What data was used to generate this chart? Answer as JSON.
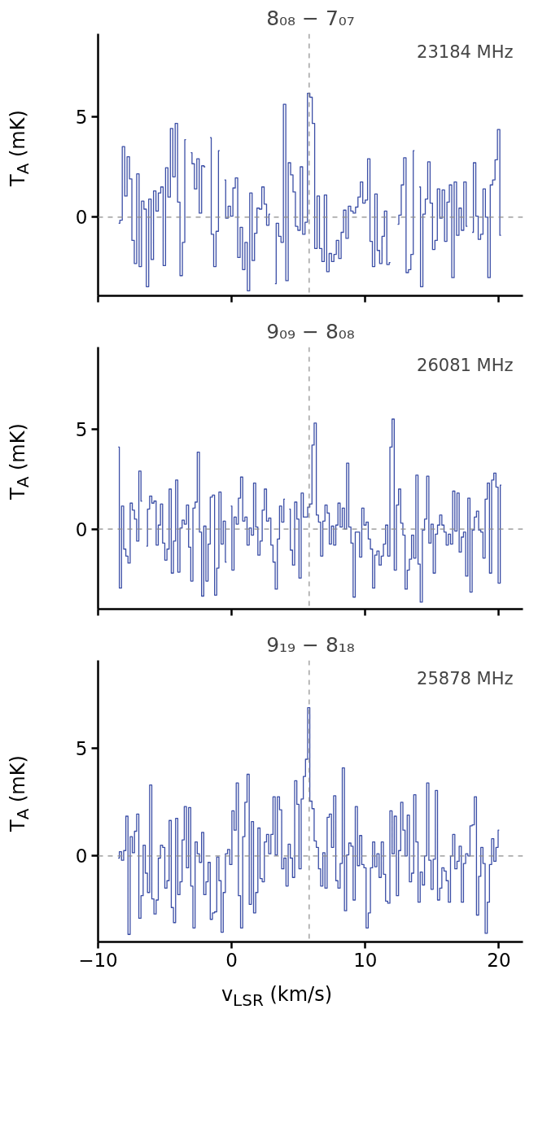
{
  "chart_data": [
    {
      "type": "step",
      "title": "8₀₈ − 7₀₇",
      "ylabel": "T$_{A}$ (mK)",
      "annotations": [
        "23184 MHz"
      ],
      "xlim": [
        -10,
        21.8
      ],
      "xticks": [
        {
          "value": -10,
          "label": null
        },
        {
          "value": 0,
          "label": null
        },
        {
          "value": 10,
          "label": null
        },
        {
          "value": 20,
          "label": null
        }
      ],
      "ylim": [
        -3.9,
        9.1
      ],
      "yticks": [
        0,
        5
      ],
      "tick_labels": "y",
      "grid": false,
      "x": [
        -8.46,
        -8.28,
        -8.1,
        -7.92,
        -7.74,
        -7.56,
        -7.38,
        -7.2,
        -7.02,
        -6.84,
        -6.66,
        -6.48,
        -6.3,
        -6.12,
        -5.94,
        -5.76,
        -5.58,
        -5.4,
        -5.22,
        -5.04,
        -4.86,
        -4.68,
        -4.5,
        -4.32,
        -4.14,
        -3.96,
        -3.78,
        -3.6,
        -3.42,
        -3.24,
        -3.06,
        -2.88,
        -2.7,
        -2.52,
        -2.34,
        -2.16,
        -1.98,
        -1.8,
        -1.62,
        -1.44,
        -1.26,
        -1.08,
        -0.9,
        -0.72,
        -0.54,
        -0.36,
        -0.18,
        0.0,
        0.18,
        0.36,
        0.54,
        0.72,
        0.9,
        1.08,
        1.26,
        1.44,
        1.62,
        1.8,
        1.98,
        2.16,
        2.34,
        2.52,
        2.7,
        2.88,
        3.06,
        3.24,
        3.42,
        3.6,
        3.78,
        3.96,
        4.14,
        4.32,
        4.5,
        4.68,
        4.86,
        5.04,
        5.22,
        5.4,
        5.58,
        5.76,
        5.94,
        6.12,
        6.3,
        6.48,
        6.66,
        6.84,
        7.02,
        7.2,
        7.38,
        7.56,
        7.74,
        7.92,
        8.1,
        8.28,
        8.46,
        8.64,
        8.82,
        9.0,
        9.18,
        9.36,
        9.54,
        9.72,
        9.9,
        10.08,
        10.26,
        10.44,
        10.62,
        10.8,
        10.98,
        11.16,
        11.34,
        11.52,
        11.7,
        11.88,
        12.06,
        12.24,
        12.42,
        12.6,
        12.78,
        12.96,
        13.14,
        13.32,
        13.5,
        13.68,
        13.86,
        14.04,
        14.22,
        14.4,
        14.58,
        14.76,
        14.94,
        15.12,
        15.3,
        15.48,
        15.66,
        15.84,
        16.02,
        16.2,
        16.38,
        16.56,
        16.74,
        16.92,
        17.1,
        17.28,
        17.46,
        17.64,
        17.82,
        18.0,
        18.18,
        18.36,
        18.54,
        18.72,
        18.9,
        19.08,
        19.26,
        19.44,
        19.62,
        19.8,
        19.98,
        20.16
      ],
      "series": [
        {
          "color": "#3b4ea6",
          "values": [
            -0.3,
            -0.15,
            3.5,
            1.05,
            3.0,
            1.9,
            -1.15,
            -2.3,
            2.15,
            -2.45,
            0.8,
            0.4,
            -3.45,
            0.9,
            -2.1,
            1.3,
            0.3,
            1.2,
            1.5,
            -2.4,
            2.45,
            1.0,
            4.4,
            2.0,
            4.65,
            0.75,
            -2.9,
            -1.25,
            3.85,
            null,
            3.2,
            2.65,
            1.4,
            2.9,
            0.2,
            2.55,
            2.5,
            null,
            3.95,
            -0.85,
            -2.45,
            -0.7,
            3.3,
            null,
            1.85,
            -0.05,
            0.55,
            0.05,
            1.45,
            1.95,
            -2.0,
            -0.5,
            -2.6,
            -1.25,
            -3.65,
            1.2,
            -2.15,
            -0.8,
            0.45,
            0.4,
            1.5,
            0.65,
            -0.4,
            0.15,
            null,
            -3.3,
            -0.3,
            -0.95,
            -1.25,
            5.6,
            -3.15,
            2.7,
            2.1,
            1.25,
            -0.45,
            -0.65,
            2.5,
            -0.85,
            -0.25,
            6.15,
            5.95,
            4.65,
            -1.55,
            1.05,
            -1.55,
            -2.2,
            1.1,
            -2.7,
            -1.8,
            -2.2,
            -1.85,
            -1.15,
            -2.05,
            -0.75,
            0.35,
            -1.05,
            0.55,
            0.3,
            0.2,
            0.5,
            1.0,
            1.75,
            0.7,
            0.85,
            2.9,
            -1.2,
            -2.45,
            1.15,
            -1.65,
            -2.3,
            -0.95,
            0.3,
            -2.35,
            -2.25,
            null,
            null,
            -0.35,
            0.1,
            1.6,
            2.95,
            -2.75,
            -2.6,
            -1.85,
            3.3,
            null,
            1.5,
            -3.45,
            0.15,
            0.9,
            2.75,
            0.7,
            -1.6,
            -1.15,
            1.4,
            -0.05,
            1.35,
            -1.2,
            0.75,
            1.6,
            -3.0,
            1.75,
            -0.9,
            0.45,
            -0.65,
            1.75,
            -0.45,
            null,
            -0.75,
            2.7,
            0.05,
            -1.1,
            -0.85,
            1.4,
            0.0,
            -3.0,
            1.6,
            1.85,
            2.85,
            4.35,
            -0.9
          ]
        }
      ],
      "ref_lines": [
        {
          "axis": "y",
          "value": 0,
          "color": "#8c8c8c",
          "line_style": "dashed"
        },
        {
          "axis": "x",
          "value": 5.8,
          "color": "#8c8c8c",
          "line_style": "dashed"
        }
      ]
    },
    {
      "type": "step",
      "title": "9₀₉ − 8₀₈",
      "ylabel": "T$_{A}$ (mK)",
      "annotations": [
        "26081 MHz"
      ],
      "xlim": [
        -10,
        21.8
      ],
      "xticks": [
        {
          "value": -10,
          "label": null
        },
        {
          "value": 0,
          "label": null
        },
        {
          "value": 10,
          "label": null
        },
        {
          "value": 20,
          "label": null
        }
      ],
      "ylim": [
        -4.0,
        9.1
      ],
      "yticks": [
        0,
        5
      ],
      "tick_labels": "y",
      "grid": false,
      "x": [
        -8.49,
        -8.328,
        -8.166,
        -8.004,
        -7.842,
        -7.68,
        -7.518,
        -7.356,
        -7.194,
        -7.032,
        -6.87,
        -6.708,
        -6.546,
        -6.384,
        -6.222,
        -6.06,
        -5.898,
        -5.736,
        -5.574,
        -5.412,
        -5.25,
        -5.088,
        -4.926,
        -4.764,
        -4.602,
        -4.44,
        -4.278,
        -4.116,
        -3.954,
        -3.792,
        -3.63,
        -3.468,
        -3.306,
        -3.144,
        -2.982,
        -2.82,
        -2.658,
        -2.496,
        -2.334,
        -2.172,
        -2.01,
        -1.848,
        -1.686,
        -1.524,
        -1.362,
        -1.2,
        -1.038,
        -0.876,
        -0.714,
        -0.552,
        -0.39,
        -0.228,
        -0.066,
        0.096,
        0.258,
        0.42,
        0.582,
        0.744,
        0.906,
        1.068,
        1.23,
        1.392,
        1.554,
        1.716,
        1.878,
        2.04,
        2.202,
        2.364,
        2.526,
        2.688,
        2.85,
        3.012,
        3.174,
        3.336,
        3.498,
        3.66,
        3.822,
        3.984,
        4.146,
        4.308,
        4.47,
        4.632,
        4.794,
        4.956,
        5.118,
        5.28,
        5.442,
        5.604,
        5.766,
        5.928,
        6.09,
        6.252,
        6.414,
        6.576,
        6.738,
        6.9,
        7.062,
        7.224,
        7.386,
        7.548,
        7.71,
        7.872,
        8.034,
        8.196,
        8.358,
        8.52,
        8.682,
        8.844,
        9.006,
        9.168,
        9.33,
        9.492,
        9.654,
        9.816,
        9.978,
        10.14,
        10.302,
        10.464,
        10.626,
        10.788,
        10.95,
        11.112,
        11.274,
        11.436,
        11.598,
        11.76,
        11.922,
        12.084,
        12.246,
        12.408,
        12.57,
        12.732,
        12.894,
        13.056,
        13.218,
        13.38,
        13.542,
        13.704,
        13.866,
        14.028,
        14.19,
        14.352,
        14.514,
        14.676,
        14.838,
        15.0,
        15.162,
        15.324,
        15.486,
        15.648,
        15.81,
        15.972,
        16.134,
        16.296,
        16.458,
        16.62,
        16.782,
        16.944,
        17.106,
        17.268,
        17.43,
        17.592,
        17.754,
        17.916,
        18.078,
        18.24,
        18.402,
        18.564,
        18.726,
        18.888,
        19.05,
        19.212,
        19.374,
        19.536,
        19.698,
        19.86,
        20.022,
        20.184
      ],
      "series": [
        {
          "color": "#3b4ea6",
          "values": [
            4.1,
            -2.95,
            1.15,
            -1.0,
            -1.35,
            -1.7,
            1.3,
            0.95,
            0.5,
            -0.6,
            2.9,
            1.4,
            null,
            -0.85,
            1.0,
            1.65,
            1.3,
            1.4,
            -0.8,
            0.2,
            1.25,
            -0.7,
            -1.55,
            -1.0,
            2.0,
            -2.2,
            -0.6,
            2.45,
            -2.15,
            0.05,
            0.45,
            0.25,
            1.2,
            -0.9,
            -2.6,
            1.05,
            1.35,
            3.85,
            -0.15,
            -3.35,
            0.15,
            -2.6,
            -0.75,
            1.6,
            1.7,
            -3.3,
            -1.95,
            1.85,
            -0.75,
            0.4,
            -1.65,
            null,
            1.15,
            -2.05,
            0.6,
            0.25,
            1.55,
            2.6,
            0.4,
            0.6,
            -0.8,
            0.05,
            -0.3,
            2.3,
            0.1,
            -1.3,
            -0.6,
            0.95,
            2.0,
            0.4,
            0.55,
            -0.8,
            -1.65,
            -3.0,
            -0.5,
            1.15,
            0.35,
            1.5,
            null,
            1.0,
            -1.05,
            -1.8,
            1.35,
            0.5,
            -2.45,
            1.8,
            0.6,
            0.6,
            1.1,
            1.25,
            4.2,
            5.3,
            0.7,
            0.35,
            -1.35,
            0.4,
            1.2,
            0.8,
            -0.75,
            0.15,
            -0.8,
            0.2,
            1.3,
            0.1,
            1.05,
            0.0,
            3.3,
            0.1,
            -0.7,
            -3.4,
            -0.15,
            -0.15,
            -1.4,
            1.05,
            0.2,
            0.35,
            -0.5,
            -1.0,
            -2.95,
            -1.3,
            -1.1,
            -1.8,
            -1.35,
            -0.75,
            0.2,
            -1.35,
            4.1,
            5.5,
            -2.05,
            1.2,
            2.0,
            0.3,
            -0.3,
            -3.0,
            -2.05,
            -1.5,
            -0.3,
            -1.45,
            2.7,
            -1.75,
            -3.65,
            -0.05,
            0.5,
            2.65,
            -0.7,
            0.25,
            -2.2,
            -0.25,
            0.2,
            0.7,
            0.2,
            -0.15,
            -0.8,
            -0.25,
            -0.75,
            1.9,
            -0.1,
            1.8,
            -1.15,
            -0.4,
            -0.15,
            -2.35,
            1.55,
            -3.15,
            -0.05,
            0.6,
            0.9,
            -0.05,
            -0.15,
            -1.45,
            1.5,
            2.3,
            -2.2,
            2.45,
            2.8,
            2.1,
            -2.7,
            2.2
          ]
        }
      ],
      "ref_lines": [
        {
          "axis": "y",
          "value": 0,
          "color": "#8c8c8c",
          "line_style": "dashed"
        },
        {
          "axis": "x",
          "value": 5.8,
          "color": "#8c8c8c",
          "line_style": "dashed"
        }
      ]
    },
    {
      "type": "step",
      "title": "9₁₉ − 8₁₈",
      "ylabel": "T$_{A}$ (mK)",
      "xlabel": "v$_{LSR}$ (km/s)",
      "annotations": [
        "25878 MHz"
      ],
      "xlim": [
        -10,
        21.8
      ],
      "xticks": [
        -10,
        0,
        10,
        20
      ],
      "ylim": [
        -4.0,
        9.1
      ],
      "yticks": [
        0,
        5
      ],
      "grid": false,
      "x": [
        -8.49,
        -8.328,
        -8.166,
        -8.004,
        -7.842,
        -7.68,
        -7.518,
        -7.356,
        -7.194,
        -7.032,
        -6.87,
        -6.708,
        -6.546,
        -6.384,
        -6.222,
        -6.06,
        -5.898,
        -5.736,
        -5.574,
        -5.412,
        -5.25,
        -5.088,
        -4.926,
        -4.764,
        -4.602,
        -4.44,
        -4.278,
        -4.116,
        -3.954,
        -3.792,
        -3.63,
        -3.468,
        -3.306,
        -3.144,
        -2.982,
        -2.82,
        -2.658,
        -2.496,
        -2.334,
        -2.172,
        -2.01,
        -1.848,
        -1.686,
        -1.524,
        -1.362,
        -1.2,
        -1.038,
        -0.876,
        -0.714,
        -0.552,
        -0.39,
        -0.228,
        -0.066,
        0.096,
        0.258,
        0.42,
        0.582,
        0.744,
        0.906,
        1.068,
        1.23,
        1.392,
        1.554,
        1.716,
        1.878,
        2.04,
        2.202,
        2.364,
        2.526,
        2.688,
        2.85,
        3.012,
        3.174,
        3.336,
        3.498,
        3.66,
        3.822,
        3.984,
        4.146,
        4.308,
        4.47,
        4.632,
        4.794,
        4.956,
        5.118,
        5.28,
        5.442,
        5.604,
        5.766,
        5.928,
        6.09,
        6.252,
        6.414,
        6.576,
        6.738,
        6.9,
        7.062,
        7.224,
        7.386,
        7.548,
        7.71,
        7.872,
        8.034,
        8.196,
        8.358,
        8.52,
        8.682,
        8.844,
        9.006,
        9.168,
        9.33,
        9.492,
        9.654,
        9.816,
        9.978,
        10.14,
        10.302,
        10.464,
        10.626,
        10.788,
        10.95,
        11.112,
        11.274,
        11.436,
        11.598,
        11.76,
        11.922,
        12.084,
        12.246,
        12.408,
        12.57,
        12.732,
        12.894,
        13.056,
        13.218,
        13.38,
        13.542,
        13.704,
        13.866,
        14.028,
        14.19,
        14.352,
        14.514,
        14.676,
        14.838,
        15.0,
        15.162,
        15.324,
        15.486,
        15.648,
        15.81,
        15.972,
        16.134,
        16.296,
        16.458,
        16.62,
        16.782,
        16.944,
        17.106,
        17.268,
        17.43,
        17.592,
        17.754,
        17.916,
        18.078,
        18.24,
        18.402,
        18.564,
        18.726,
        18.888,
        19.05,
        19.212,
        19.374,
        19.536,
        19.698,
        19.86,
        20.022
      ],
      "series": [
        {
          "color": "#3b4ea6",
          "values": [
            -0.1,
            0.2,
            -0.2,
            0.25,
            1.85,
            -3.65,
            0.9,
            0.15,
            1.15,
            1.95,
            -2.9,
            -1.85,
            0.5,
            -0.8,
            -1.7,
            3.3,
            -2.0,
            -2.7,
            -2.05,
            -0.1,
            0.5,
            0.4,
            -1.5,
            -1.15,
            1.65,
            -2.4,
            -3.1,
            1.75,
            -1.8,
            -1.2,
            0.75,
            2.3,
            -0.55,
            2.25,
            -1.4,
            -3.35,
            0.65,
            0.1,
            -0.3,
            1.1,
            -1.8,
            -1.2,
            -0.3,
            -2.95,
            -2.65,
            -2.6,
            -0.05,
            -1.15,
            -3.55,
            -1.7,
            0.1,
            0.3,
            -0.4,
            2.1,
            1.2,
            3.4,
            -1.85,
            -3.35,
            0.9,
            2.5,
            3.8,
            -2.25,
            1.6,
            -2.65,
            -1.7,
            1.3,
            -1.05,
            -1.2,
            0.65,
            1.0,
            0.1,
            1.0,
            2.75,
            0.05,
            2.75,
            2.15,
            -0.6,
            -0.1,
            -1.4,
            0.55,
            -0.1,
            -1.0,
            3.5,
            2.4,
            -0.6,
            2.65,
            3.7,
            4.5,
            6.9,
            2.55,
            2.2,
            0.7,
            0.4,
            -0.6,
            -1.4,
            0.15,
            -1.5,
            1.8,
            1.95,
            0.4,
            2.8,
            -1.15,
            -1.5,
            -0.35,
            4.1,
            -2.55,
            0.05,
            0.6,
            0.45,
            -2.05,
            2.3,
            -0.45,
            0.95,
            -0.4,
            -0.55,
            -3.35,
            -2.65,
            -0.55,
            0.65,
            -0.5,
            0.1,
            -1.0,
            0.65,
            -0.85,
            -2.1,
            -2.2,
            2.1,
            0.1,
            1.85,
            -1.85,
            0.25,
            2.5,
            1.2,
            0.0,
            1.9,
            -1.2,
            -0.8,
            2.85,
            0.65,
            -2.15,
            -0.75,
            -1.35,
            0.0,
            3.4,
            -0.2,
            -1.55,
            -0.15,
            3.05,
            -2.05,
            -1.5,
            -0.55,
            -0.7,
            -1.15,
            -2.15,
            0.0,
            1.0,
            -0.6,
            -0.25,
            0.45,
            -2.15,
            -0.35,
            0.1,
            0.0,
            1.4,
            1.45,
            2.75,
            -2.75,
            -0.95,
            0.4,
            -0.35,
            -3.6,
            -2.15,
            -0.4,
            0.8,
            -0.25,
            0.4,
            1.2
          ]
        }
      ],
      "ref_lines": [
        {
          "axis": "y",
          "value": 0,
          "color": "#8c8c8c",
          "line_style": "dashed"
        },
        {
          "axis": "x",
          "value": 5.8,
          "color": "#8c8c8c",
          "line_style": "dashed"
        }
      ]
    }
  ]
}
